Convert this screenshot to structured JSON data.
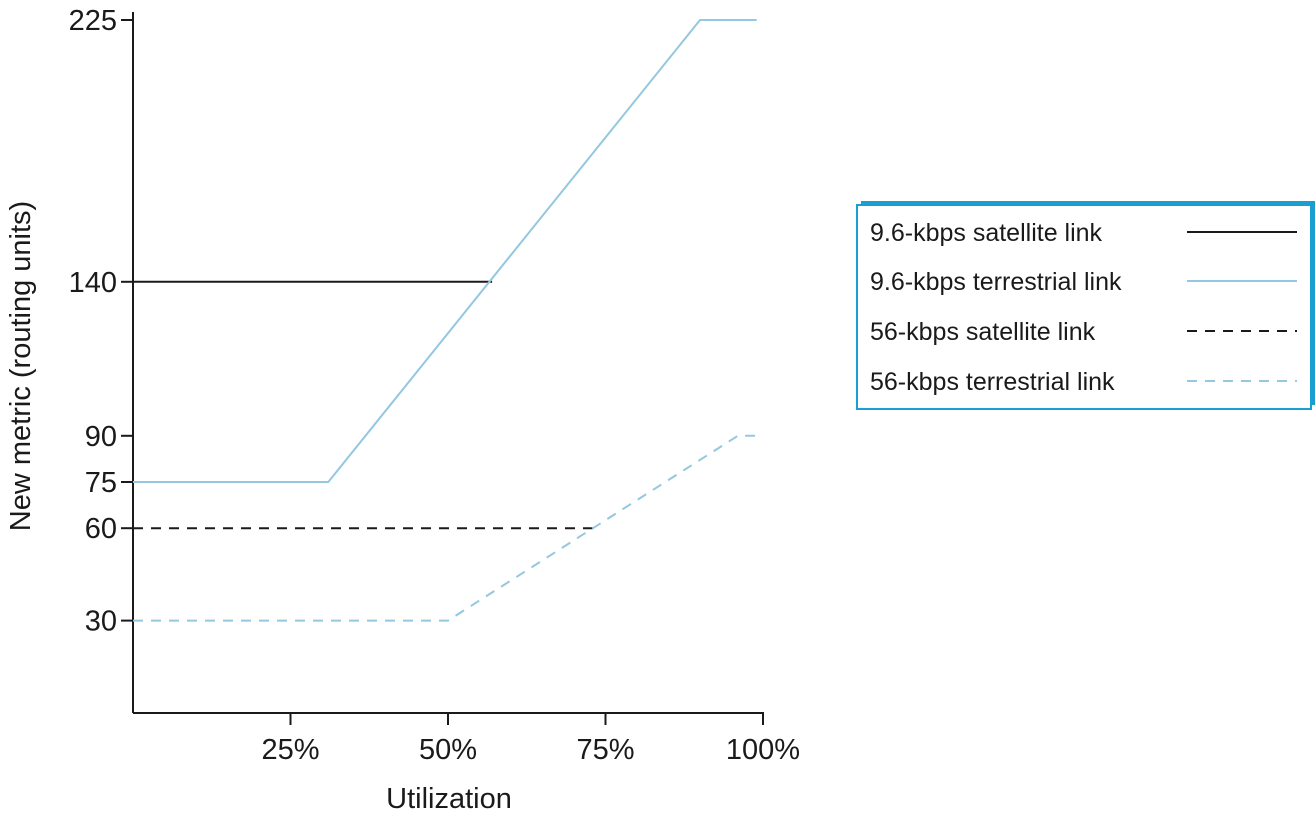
{
  "chart_data": {
    "type": "line",
    "title": "",
    "xlabel": "Utilization",
    "ylabel": "New metric (routing units)",
    "x_unit": "%",
    "xlim": [
      0,
      100
    ],
    "ylim": [
      0,
      225
    ],
    "x_ticks": [
      25,
      50,
      75,
      100
    ],
    "x_tick_labels": [
      "25%",
      "50%",
      "75%",
      "100%"
    ],
    "y_ticks": [
      30,
      60,
      75,
      90,
      140,
      225
    ],
    "y_tick_labels": [
      "30",
      "60",
      "75",
      "90",
      "140",
      "225"
    ],
    "grid": false,
    "legend_position": "right",
    "series": [
      {
        "name": "9.6-kbps satellite link",
        "color": "#1a1a1a",
        "style": "solid",
        "x": [
          0,
          57
        ],
        "y": [
          140,
          140
        ]
      },
      {
        "name": "9.6-kbps terrestrial link",
        "color": "#93c8e0",
        "style": "solid",
        "x": [
          0,
          31,
          90,
          99
        ],
        "y": [
          75,
          75,
          225,
          225
        ]
      },
      {
        "name": "56-kbps satellite link",
        "color": "#1a1a1a",
        "style": "dashed",
        "x": [
          0,
          74
        ],
        "y": [
          60,
          60
        ]
      },
      {
        "name": "56-kbps terrestrial link",
        "color": "#93c8e0",
        "style": "dashed",
        "x": [
          0,
          50,
          96,
          99
        ],
        "y": [
          30,
          30,
          90,
          90
        ]
      }
    ],
    "legend_border_color": "#1aa0d0"
  }
}
